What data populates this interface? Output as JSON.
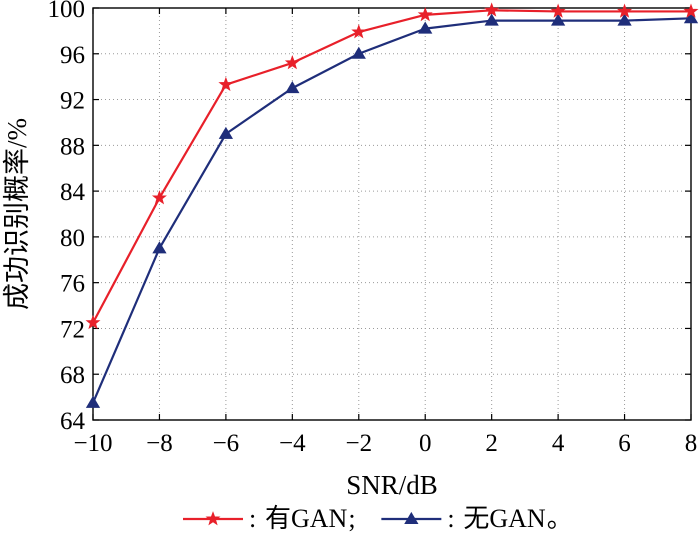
{
  "chart_data": {
    "type": "line",
    "xlabel": "SNR/dB",
    "ylabel": "成功识别概率/%",
    "xlim": [
      -10,
      8
    ],
    "ylim": [
      64,
      100
    ],
    "x_ticks": [
      -10,
      -8,
      -6,
      -4,
      -2,
      0,
      2,
      4,
      6,
      8
    ],
    "y_ticks": [
      64,
      68,
      72,
      76,
      80,
      84,
      88,
      92,
      96,
      100
    ],
    "x_tick_labels": [
      "−10",
      "−8",
      "−6",
      "−4",
      "−2",
      "0",
      "2",
      "4",
      "6",
      "8"
    ],
    "y_tick_labels": [
      "64",
      "68",
      "72",
      "76",
      "80",
      "84",
      "88",
      "92",
      "96",
      "100"
    ],
    "grid": true,
    "legend_position": "bottom",
    "legend_separator": ";",
    "legend_terminator": "。",
    "legend_colon": ":",
    "x": [
      -10,
      -8,
      -6,
      -4,
      -2,
      0,
      2,
      4,
      6,
      8
    ],
    "series": [
      {
        "name": "有GAN",
        "color": "#e8202a",
        "marker": "star",
        "values": [
          72.5,
          83.4,
          93.3,
          95.2,
          97.9,
          99.4,
          99.8,
          99.7,
          99.7,
          99.7
        ]
      },
      {
        "name": "无GAN",
        "color": "#1f2e7a",
        "marker": "triangle",
        "values": [
          65.5,
          79.0,
          89.0,
          93.0,
          96.0,
          98.2,
          98.9,
          98.9,
          98.9,
          99.1
        ]
      }
    ]
  }
}
